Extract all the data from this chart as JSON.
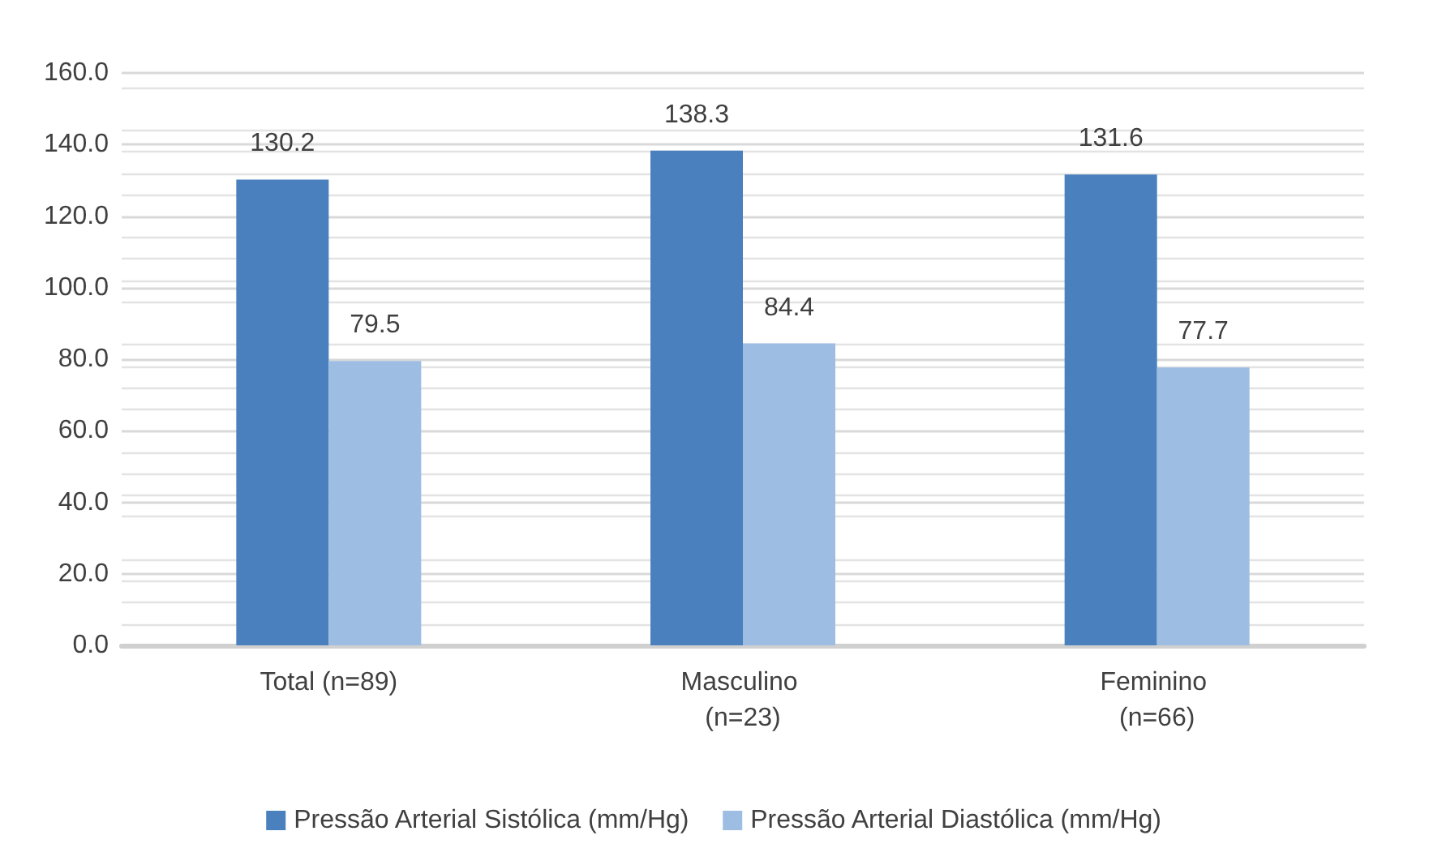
{
  "chart_data": {
    "type": "bar",
    "categories": [
      "Total (n=89)",
      "Masculino (n=23)",
      "Feminino (n=66)"
    ],
    "series": [
      {
        "name": "Pressão Arterial Sistólica (mm/Hg)",
        "color": "#4a80be",
        "values": [
          130.2,
          138.3,
          131.6
        ]
      },
      {
        "name": "Pressão Arterial Diastólica (mm/Hg)",
        "color": "#9dbde3",
        "values": [
          79.5,
          84.4,
          77.7
        ]
      }
    ],
    "ylim": [
      0,
      160
    ],
    "yticks": [
      {
        "value": 0,
        "label": "0.0"
      },
      {
        "value": 20,
        "label": "20.0"
      },
      {
        "value": 40,
        "label": "40.0"
      },
      {
        "value": 60,
        "label": "60.0"
      },
      {
        "value": 80,
        "label": "80.0"
      },
      {
        "value": 100,
        "label": "100.0"
      },
      {
        "value": 120,
        "label": "120.0"
      },
      {
        "value": 140,
        "label": "140.0"
      },
      {
        "value": 160,
        "label": "160.0"
      }
    ],
    "grid": true,
    "legend": "bottom",
    "data_labels": true
  }
}
